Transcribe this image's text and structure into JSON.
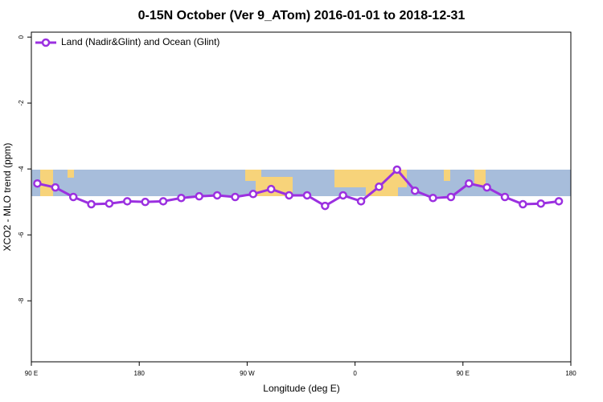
{
  "chart_data": {
    "type": "line",
    "title": "0-15N October (Ver 9_ATom)   2016-01-01 to 2018-12-31",
    "xlabel": "Longitude (deg E)",
    "ylabel": "XCO2 - MLO trend (ppm)",
    "x": [
      95,
      110,
      125,
      140,
      155,
      170,
      185,
      200,
      215,
      230,
      245,
      260,
      275,
      290,
      305,
      320,
      335,
      350,
      365,
      380,
      395,
      410,
      425,
      440,
      455,
      470,
      485,
      500,
      515,
      530
    ],
    "series": [
      {
        "name": "Land (Nadir&Glint) and Ocean (Glint)",
        "color": "#9b30e0",
        "values": [
          -4.44,
          -4.56,
          -4.85,
          -5.07,
          -5.05,
          -4.98,
          -5.0,
          -4.98,
          -4.88,
          -4.83,
          -4.8,
          -4.85,
          -4.76,
          -4.61,
          -4.8,
          -4.8,
          -5.12,
          -4.8,
          -4.98,
          -4.54,
          -4.02,
          -4.66,
          -4.88,
          -4.85,
          -4.44,
          -4.56,
          -4.85,
          -5.07,
          -5.05,
          -4.98
        ]
      }
    ],
    "xlim": [
      90,
      540
    ],
    "xticks": [
      {
        "value": 90,
        "label": "90 E"
      },
      180,
      {
        "value": 270,
        "label": "90 W"
      },
      {
        "value": 360,
        "label": "0"
      },
      {
        "value": 450,
        "label": "90 E"
      },
      {
        "value": 540,
        "label": "180"
      }
    ],
    "ylim": [
      -9.85,
      0.15
    ],
    "yticks": [
      0,
      -2,
      -4,
      -6,
      -8
    ],
    "grid": false,
    "legend": "top-left"
  }
}
